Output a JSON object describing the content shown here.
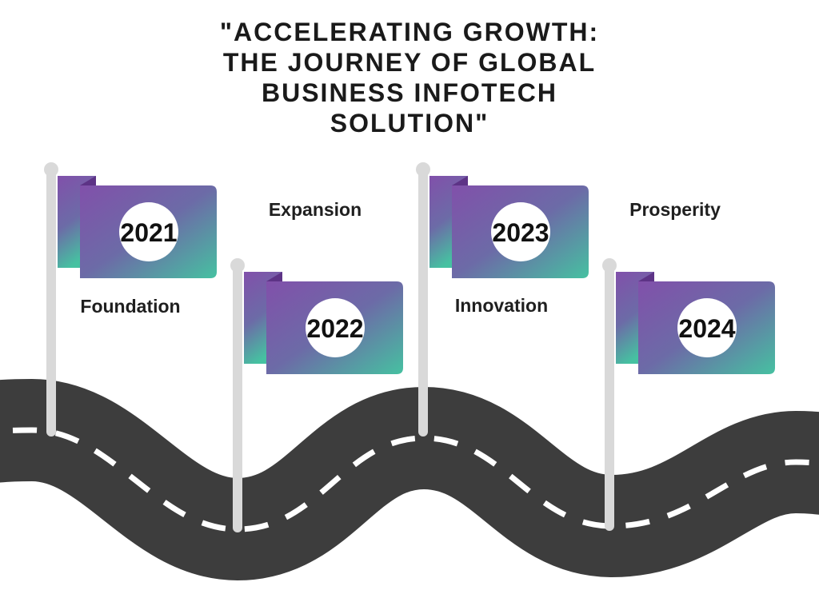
{
  "title": {
    "lines": [
      "\"ACCELERATING GROWTH:",
      "THE JOURNEY OF GLOBAL",
      "BUSINESS INFOTECH",
      "SOLUTION\""
    ]
  },
  "milestones": [
    {
      "year": "2021",
      "label": "Foundation"
    },
    {
      "year": "2022",
      "label": "Expansion"
    },
    {
      "year": "2023",
      "label": "Innovation"
    },
    {
      "year": "2024",
      "label": "Prosperity"
    }
  ],
  "colors": {
    "road": "#3d3d3d",
    "road_dashes": "#ffffff",
    "pole": "#d9d9d9",
    "flag_purple": "#8150aa",
    "flag_mid": "#6c6ba7",
    "flag_teal": "#46c1a1",
    "flag_fold": "#5d3386",
    "badge": "#ffffff",
    "year_text": "#111111",
    "label_text": "#1f1f1f"
  }
}
